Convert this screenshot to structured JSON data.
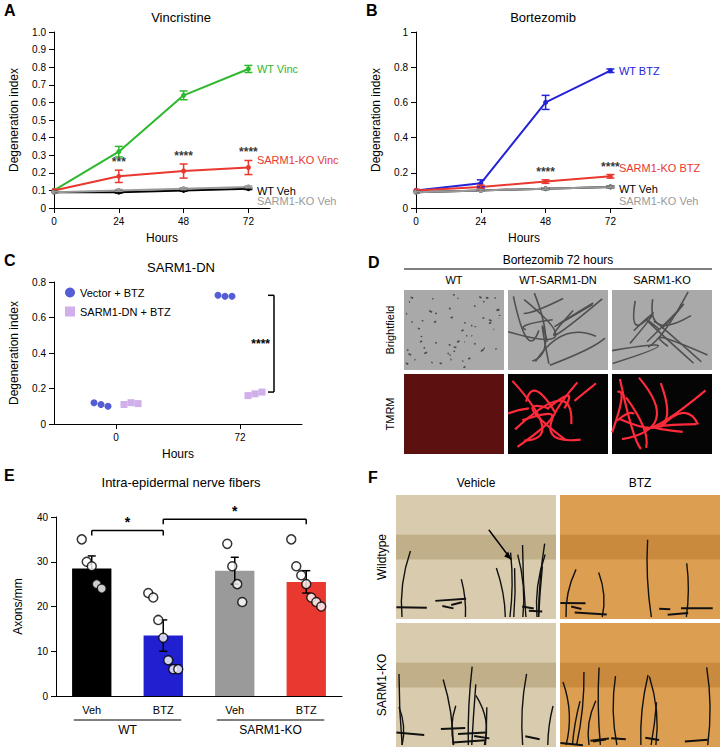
{
  "chart_data": [
    {
      "panel": "A",
      "type": "line",
      "title": "Vincristine",
      "x_label": "Hours",
      "y_label": "Degeneration index",
      "x": [
        0,
        24,
        48,
        72
      ],
      "xlim": [
        0,
        80
      ],
      "xticks": [
        0,
        24,
        48,
        72
      ],
      "ylim": [
        0,
        1
      ],
      "yticks": [
        0,
        0.1,
        0.2,
        0.3,
        0.4,
        0.5,
        0.6,
        0.7,
        0.8,
        0.9,
        {
          "value": 1,
          "label": "1.0"
        }
      ],
      "grid": false,
      "marker": "circle",
      "series": [
        {
          "name": "WT Vinc",
          "color": "#2eb82e",
          "values": [
            0.1,
            0.32,
            0.64,
            0.79
          ],
          "errors": [
            0.005,
            0.03,
            0.025,
            0.02
          ]
        },
        {
          "name": "SARM1-KO Vinc",
          "color": "#e8382f",
          "values": [
            0.1,
            0.18,
            0.21,
            0.23
          ],
          "errors": [
            0.005,
            0.035,
            0.04,
            0.04
          ]
        },
        {
          "name": "WT Veh",
          "color": "#000000",
          "values": [
            0.09,
            0.09,
            0.1,
            0.11
          ],
          "errors": [
            0.005,
            0.005,
            0.005,
            0.005
          ]
        },
        {
          "name": "SARM1-KO Veh",
          "color": "#999999",
          "values": [
            0.09,
            0.1,
            0.11,
            0.12
          ],
          "errors": [
            0.005,
            0.005,
            0.005,
            0.005
          ]
        }
      ],
      "annotations": [
        {
          "text": "***",
          "x": 24,
          "series": "SARM1-KO Vinc"
        },
        {
          "text": "****",
          "x": 48,
          "series": "SARM1-KO Vinc"
        },
        {
          "text": "****",
          "x": 72,
          "series": "SARM1-KO Vinc"
        }
      ]
    },
    {
      "panel": "B",
      "type": "line",
      "title": "Bortezomib",
      "x_label": "Hours",
      "y_label": "Degeneration index",
      "x": [
        0,
        24,
        48,
        72
      ],
      "xlim": [
        0,
        80
      ],
      "xticks": [
        0,
        24,
        48,
        72
      ],
      "ylim": [
        0,
        1
      ],
      "yticks": [
        0,
        0.2,
        0.4,
        0.6,
        0.8,
        1
      ],
      "grid": false,
      "marker": "circle",
      "series": [
        {
          "name": "WT BTZ",
          "color": "#2323d8",
          "values": [
            0.1,
            0.14,
            0.6,
            0.78
          ],
          "errors": [
            0.005,
            0.02,
            0.04,
            0.01
          ]
        },
        {
          "name": "SARM1-KO BTZ",
          "color": "#e8382f",
          "values": [
            0.1,
            0.12,
            0.15,
            0.18
          ],
          "errors": [
            0.005,
            0.01,
            0.01,
            0.01
          ]
        },
        {
          "name": "WT Veh",
          "color": "#000000",
          "values": [
            0.09,
            0.1,
            0.11,
            0.12
          ],
          "errors": [
            0.005,
            0.005,
            0.005,
            0.005
          ]
        },
        {
          "name": "SARM1-KO Veh",
          "color": "#999999",
          "values": [
            0.09,
            0.1,
            0.11,
            0.12
          ],
          "errors": [
            0.005,
            0.005,
            0.005,
            0.005
          ]
        }
      ],
      "annotations": [
        {
          "text": "****",
          "x": 48,
          "series": "SARM1-KO BTZ"
        },
        {
          "text": "****",
          "x": 72,
          "series": "SARM1-KO BTZ"
        }
      ]
    },
    {
      "panel": "C",
      "type": "scatter",
      "title": "SARM1-DN",
      "x_label": "Hours",
      "y_label": "Degeneration index",
      "categories": [
        "0",
        "72"
      ],
      "ylim": [
        0,
        0.8
      ],
      "yticks": [
        0,
        0.2,
        0.4,
        0.6,
        0.8
      ],
      "grid": false,
      "legend": "upper left",
      "series": [
        {
          "name": "Vector + BTZ",
          "color": "#2a35c9",
          "marker": "circle",
          "values": [
            [
              0.1,
              0.11,
              0.12
            ],
            [
              0.72,
              0.72,
              0.725
            ]
          ]
        },
        {
          "name": "SARM1-DN + BTZ",
          "color": "#c49be6",
          "marker": "square",
          "values": [
            [
              0.11,
              0.12,
              0.115
            ],
            [
              0.16,
              0.17,
              0.18
            ]
          ]
        }
      ],
      "annotations": [
        {
          "text": "****",
          "category": "72"
        }
      ]
    },
    {
      "panel": "E",
      "type": "bar",
      "title": "Intra-epidermal nerve fibers",
      "y_label": "Axons/mm",
      "categories": [
        "Veh",
        "BTZ",
        "Veh",
        "BTZ"
      ],
      "groups": [
        "WT",
        "WT",
        "SARM1-KO",
        "SARM1-KO"
      ],
      "values": [
        28.5,
        13.5,
        28,
        25.5
      ],
      "errors": [
        2.8,
        3.5,
        3,
        2.5
      ],
      "points": [
        [
          35,
          30,
          29,
          25,
          24
        ],
        [
          23,
          22,
          17,
          13,
          8,
          6,
          6
        ],
        [
          34,
          29,
          25,
          21
        ],
        [
          35,
          29,
          27,
          25,
          22,
          21,
          20
        ]
      ],
      "colors": [
        "#000000",
        "#2020d0",
        "#9a9a9a",
        "#e8382f"
      ],
      "ylim": [
        0,
        40
      ],
      "yticks": [
        0,
        10,
        20,
        30,
        40
      ],
      "grid": false,
      "comparisons": [
        {
          "from": 0,
          "to": 1,
          "label": "*"
        },
        {
          "from": 1,
          "to": 3,
          "label": "*"
        }
      ]
    }
  ],
  "image_panels": [
    {
      "panel": "D",
      "title": "Bortezomib 72 hours",
      "columns": [
        "WT",
        "WT-SARM1-DN",
        "SARM1-KO"
      ],
      "rows": [
        "Brightfield",
        "TMRM"
      ]
    },
    {
      "panel": "F",
      "columns": [
        "Vehicle",
        "BTZ"
      ],
      "rows": [
        "Wildtype",
        "SARM1-KO"
      ]
    }
  ]
}
